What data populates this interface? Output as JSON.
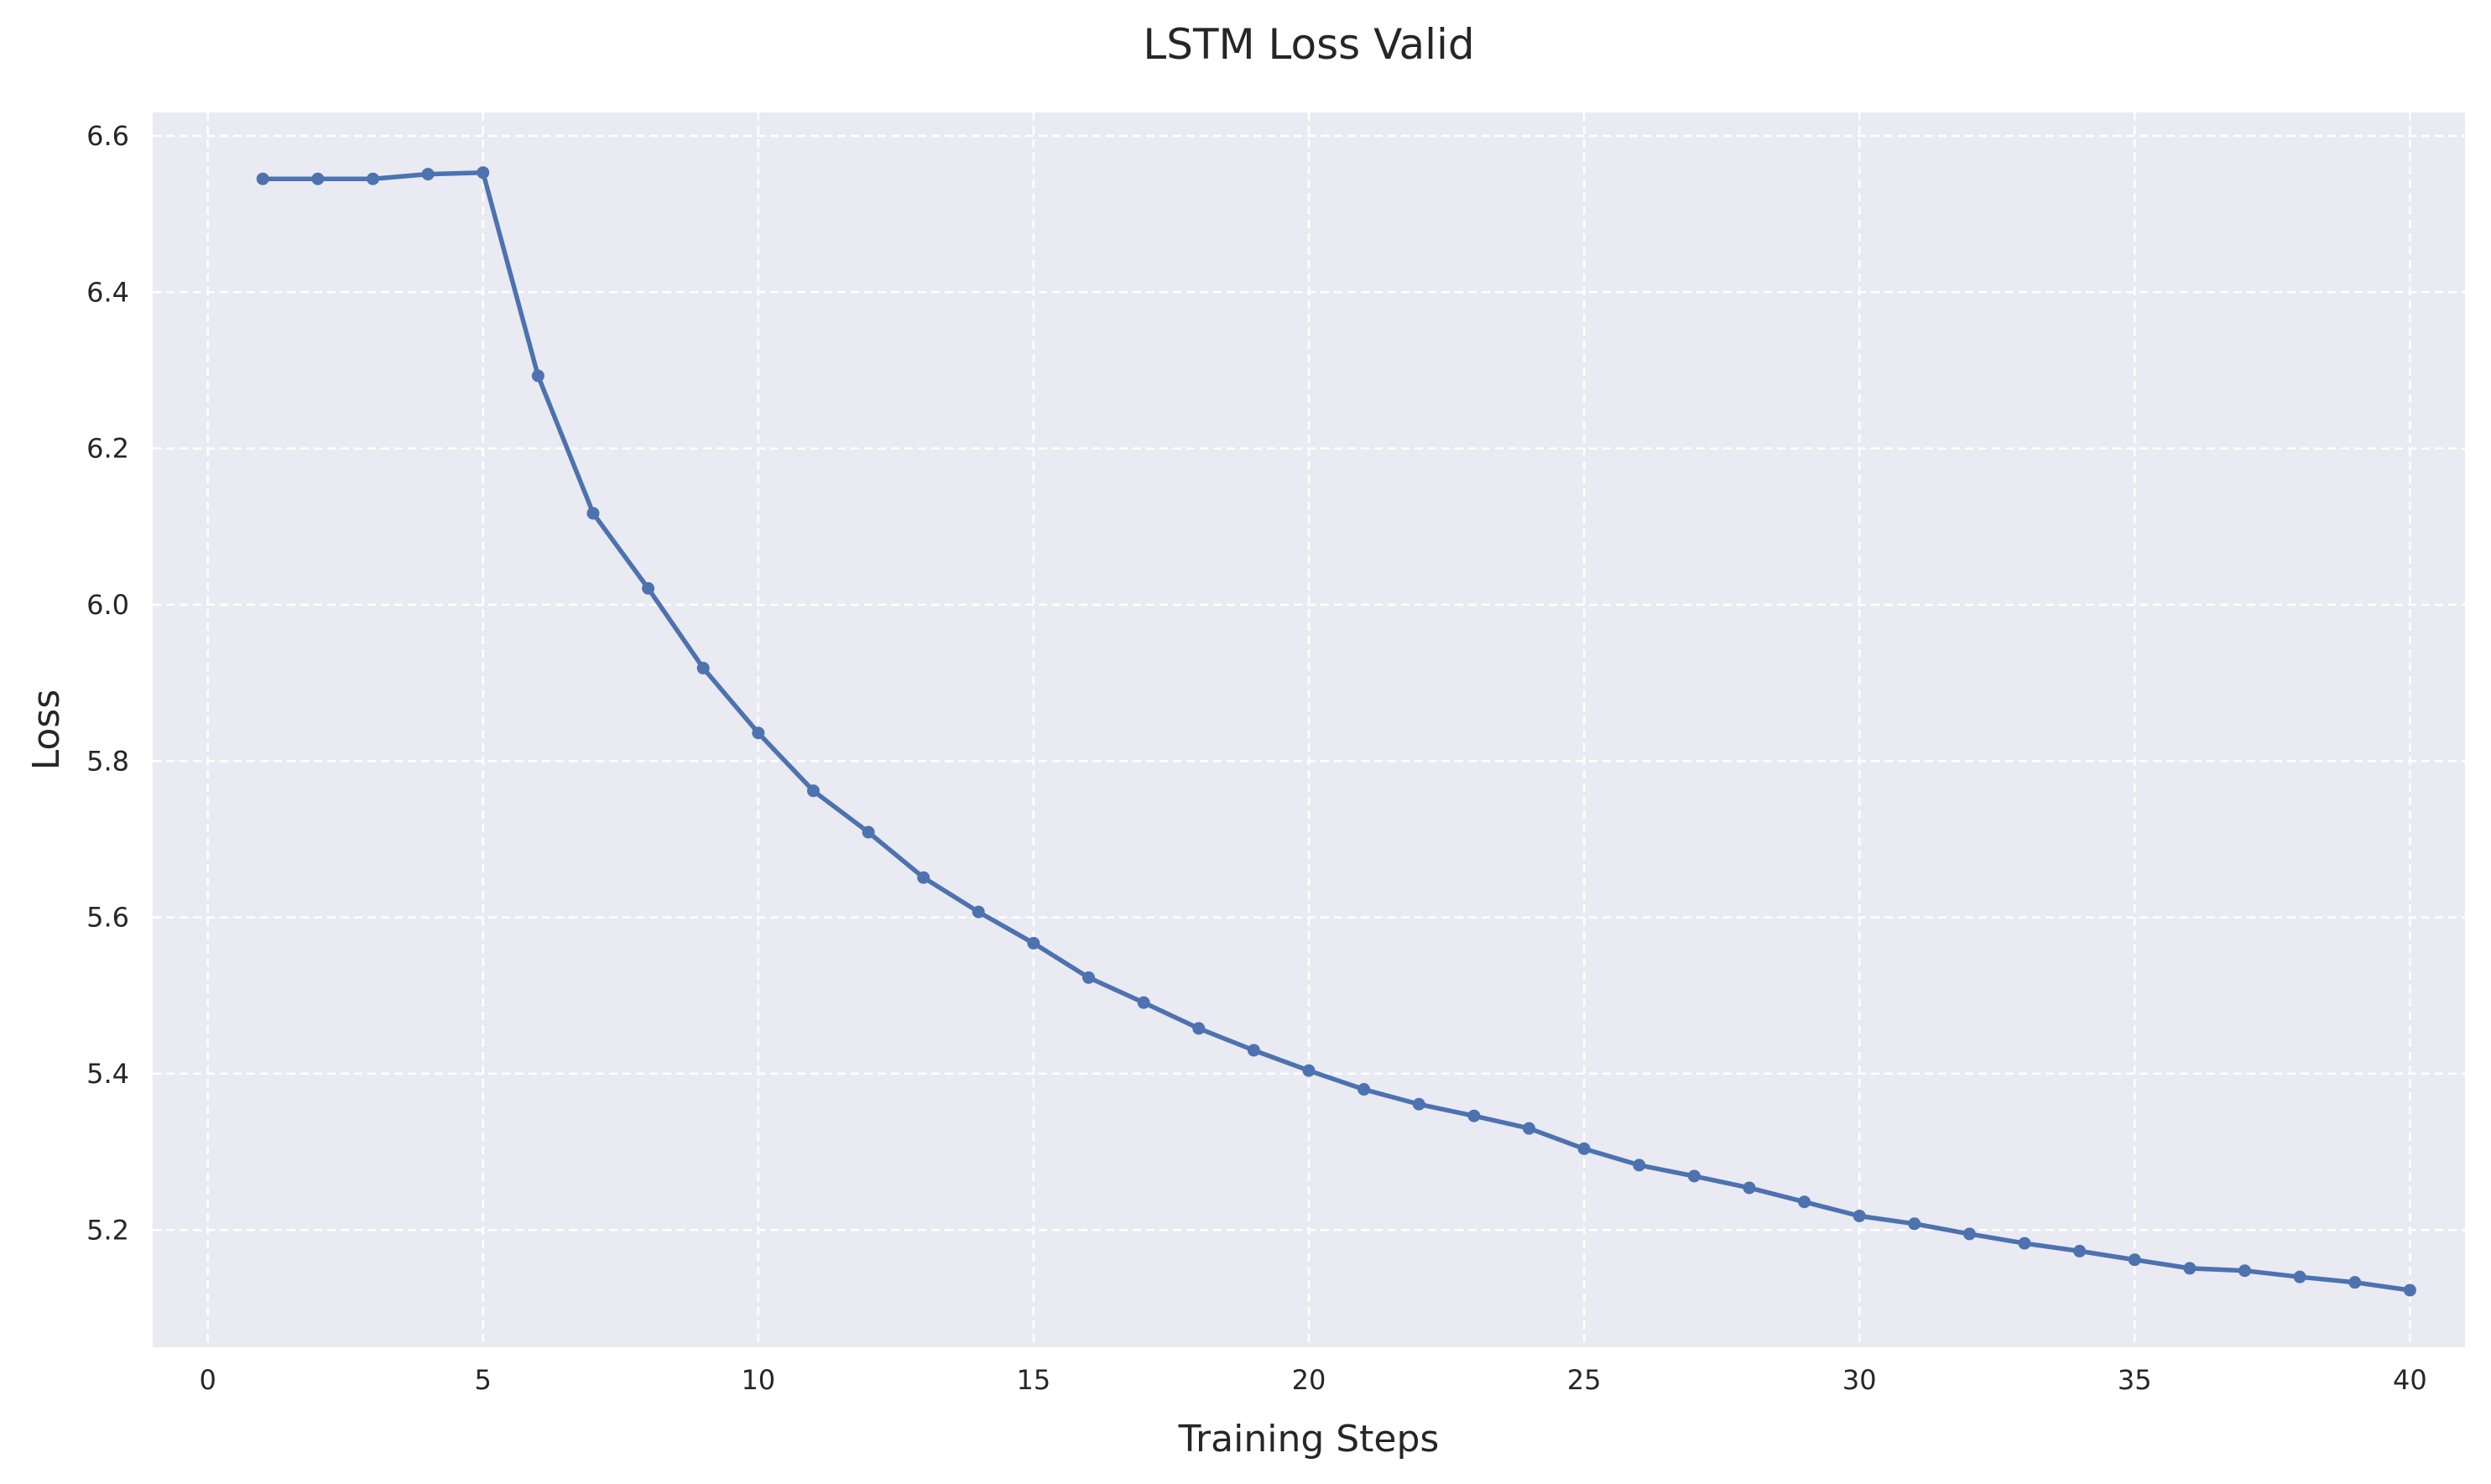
{
  "chart_data": {
    "type": "line",
    "title": "LSTM Loss Valid",
    "xlabel": "Training Steps",
    "ylabel": "Loss",
    "xlim": [
      -1,
      41
    ],
    "ylim": [
      5.05,
      6.63
    ],
    "xticks": [
      0,
      5,
      10,
      15,
      20,
      25,
      30,
      35,
      40
    ],
    "yticks": [
      5.2,
      5.4,
      5.6,
      5.8,
      6.0,
      6.2,
      6.4,
      6.6
    ],
    "grid": true,
    "grid_style": "dashed",
    "background_color": "#eaeaf2",
    "grid_color": "#ffffff",
    "series": [
      {
        "color": "#4c72b0",
        "marker": "circle",
        "x": [
          1,
          2,
          3,
          4,
          5,
          6,
          7,
          8,
          9,
          10,
          11,
          12,
          13,
          14,
          15,
          16,
          17,
          18,
          19,
          20,
          21,
          22,
          23,
          24,
          25,
          26,
          27,
          28,
          29,
          30,
          31,
          32,
          33,
          34,
          35,
          36,
          37,
          38,
          39,
          40
        ],
        "values": [
          6.545,
          6.545,
          6.545,
          6.551,
          6.553,
          6.293,
          6.117,
          6.021,
          5.919,
          5.836,
          5.762,
          5.709,
          5.651,
          5.607,
          5.567,
          5.523,
          5.491,
          5.458,
          5.43,
          5.404,
          5.38,
          5.361,
          5.346,
          5.33,
          5.304,
          5.283,
          5.269,
          5.254,
          5.236,
          5.218,
          5.208,
          5.195,
          5.183,
          5.173,
          5.162,
          5.151,
          5.148,
          5.14,
          5.133,
          5.123
        ]
      }
    ]
  }
}
